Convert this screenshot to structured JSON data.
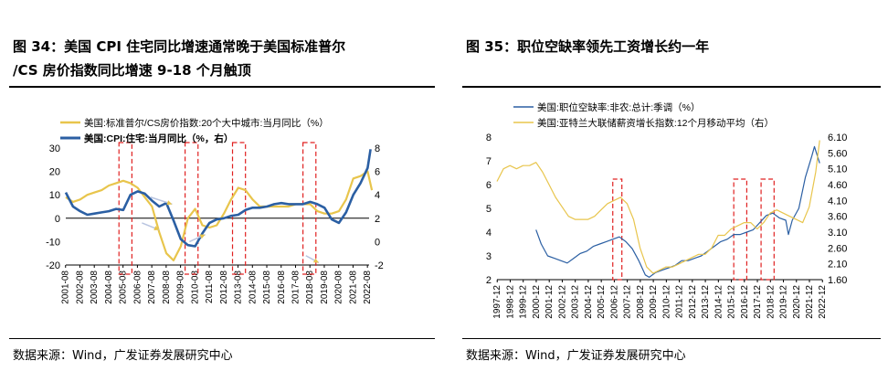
{
  "left": {
    "title_line1": "图 34：美国 CPI 住宅同比增速通常晚于美国标准普尔",
    "title_line2": "/CS 房价指数同比增速 9-18 个月触顶",
    "source": "数据来源：Wind，广发证券发展研究中心"
  },
  "right": {
    "title": "图 35：职位空缺率领先工资增长约一年",
    "source": "数据来源：Wind，广发证券发展研究中心"
  },
  "chart_data": [
    {
      "type": "line",
      "legend_placement": "top-left",
      "x_dates": [
        "2001-08",
        "2002-08",
        "2003-08",
        "2004-08",
        "2005-08",
        "2006-08",
        "2007-08",
        "2008-08",
        "2009-08",
        "2010-08",
        "2011-08",
        "2012-08",
        "2013-08",
        "2014-08",
        "2015-08",
        "2016-08",
        "2017-08",
        "2018-08",
        "2019-08",
        "2020-08",
        "2021-08",
        "2022-08"
      ],
      "y_left": {
        "ylim": [
          -20,
          30
        ],
        "ticks": [
          -20,
          -10,
          0,
          10,
          20,
          30
        ]
      },
      "y_right": {
        "ylim": [
          -2,
          8
        ],
        "ticks": [
          -2,
          0,
          2,
          4,
          6,
          8
        ]
      },
      "series": [
        {
          "name": "美国:标准普尔/CS房价指数:20个大中城市:当月同比（%）",
          "axis": "left",
          "color": "#e8c54c",
          "x": [
            2001.6,
            2002.1,
            2002.6,
            2003.1,
            2003.6,
            2004.1,
            2004.6,
            2005.1,
            2005.6,
            2006.1,
            2006.6,
            2007.1,
            2007.6,
            2008.1,
            2008.6,
            2009.1,
            2009.6,
            2010.1,
            2010.6,
            2011.1,
            2011.6,
            2012.1,
            2012.6,
            2013.1,
            2013.6,
            2014.1,
            2014.6,
            2015.1,
            2015.6,
            2016.1,
            2016.6,
            2017.1,
            2017.6,
            2018.1,
            2018.6,
            2019.1,
            2019.6,
            2020.1,
            2020.6,
            2021.1,
            2021.6,
            2022.1,
            2022.6,
            2022.9
          ],
          "y": [
            9,
            7,
            8,
            10,
            11,
            12,
            14,
            15,
            16,
            15,
            13,
            9,
            5,
            -6,
            -15,
            -18,
            -12,
            0,
            4,
            -3,
            -4,
            -3,
            2,
            8,
            13,
            12,
            8,
            5,
            5,
            5,
            5,
            5,
            6,
            6,
            6,
            3,
            2,
            2,
            3,
            8,
            17,
            18,
            20,
            12
          ]
        },
        {
          "name": "美国:CPI:住宅:当月同比（%，右）",
          "axis": "right",
          "color": "#2b5fa3",
          "x": [
            2001.6,
            2002.1,
            2002.6,
            2003.1,
            2003.6,
            2004.1,
            2004.6,
            2005.1,
            2005.6,
            2006.1,
            2006.6,
            2007.1,
            2007.6,
            2008.1,
            2008.6,
            2009.1,
            2009.6,
            2010.1,
            2010.6,
            2011.1,
            2011.6,
            2012.1,
            2012.6,
            2013.1,
            2013.6,
            2014.1,
            2014.6,
            2015.1,
            2015.6,
            2016.1,
            2016.6,
            2017.1,
            2017.6,
            2018.1,
            2018.6,
            2019.1,
            2019.6,
            2020.1,
            2020.6,
            2021.1,
            2021.6,
            2022.1,
            2022.6,
            2022.8
          ],
          "y": [
            4.2,
            3.0,
            2.6,
            2.3,
            2.4,
            2.5,
            2.6,
            2.8,
            2.7,
            4.0,
            4.3,
            4.1,
            3.5,
            3.0,
            3.3,
            1.8,
            0.2,
            -0.3,
            -0.4,
            0.7,
            1.6,
            1.9,
            2.0,
            2.2,
            2.3,
            2.7,
            2.9,
            2.9,
            3.0,
            3.2,
            3.3,
            3.2,
            3.2,
            3.2,
            3.4,
            3.2,
            2.9,
            1.9,
            1.6,
            2.5,
            4.0,
            5.0,
            6.3,
            7.9
          ]
        }
      ],
      "annotations": [
        {
          "type": "dashed-box",
          "x_range": [
            2005.3,
            2006.2
          ]
        },
        {
          "type": "dashed-box",
          "x_range": [
            2009.9,
            2010.8
          ]
        },
        {
          "type": "dashed-box",
          "x_range": [
            2013.2,
            2014.1
          ]
        },
        {
          "type": "dashed-box",
          "x_range": [
            2018.1,
            2019.0
          ]
        },
        {
          "type": "arrow",
          "from": [
            2006.9,
            -2
          ],
          "to": [
            2008.1,
            -5
          ]
        },
        {
          "type": "arrow",
          "from": [
            2010.2,
            -10
          ],
          "to": [
            2011.3,
            -7
          ]
        },
        {
          "type": "arrow",
          "from": [
            2018.3,
            -16
          ],
          "to": [
            2019.2,
            -19
          ]
        },
        {
          "type": "arrow",
          "from": [
            2007.5,
            9
          ],
          "to": [
            2009.0,
            6
          ]
        }
      ]
    },
    {
      "type": "line",
      "legend_placement": "top-left",
      "x_dates": [
        "1997-12",
        "1998-12",
        "1999-12",
        "2000-12",
        "2001-12",
        "2002-12",
        "2003-12",
        "2004-12",
        "2005-12",
        "2006-12",
        "2007-12",
        "2008-12",
        "2009-12",
        "2010-12",
        "2011-12",
        "2012-12",
        "2013-12",
        "2014-12",
        "2015-12",
        "2016-12",
        "2017-12",
        "2018-12",
        "2019-12",
        "2020-12",
        "2021-12",
        "2022-12"
      ],
      "y_left": {
        "ylim": [
          2,
          8
        ],
        "ticks": [
          2,
          3,
          4,
          5,
          6,
          7,
          8
        ]
      },
      "y_right": {
        "ylim": [
          1.6,
          6.1
        ],
        "ticks": [
          "1.60",
          "2.10",
          "2.60",
          "3.10",
          "3.60",
          "4.10",
          "4.60",
          "5.10",
          "5.60",
          "6.10"
        ]
      },
      "series": [
        {
          "name": "美国:职位空缺率:非农:总计:季调（%）",
          "axis": "left",
          "color": "#2b5fa3",
          "x": [
            2000.9,
            2001.3,
            2001.8,
            2002.3,
            2002.8,
            2003.3,
            2003.8,
            2004.3,
            2004.8,
            2005.3,
            2005.8,
            2006.3,
            2006.8,
            2007.3,
            2007.8,
            2008.3,
            2008.8,
            2009.3,
            2009.6,
            2010.1,
            2010.6,
            2011.1,
            2011.6,
            2012.1,
            2012.6,
            2013.1,
            2013.6,
            2014.1,
            2014.6,
            2015.1,
            2015.6,
            2016.1,
            2016.6,
            2017.1,
            2017.6,
            2018.1,
            2018.6,
            2019.1,
            2019.6,
            2020.1,
            2020.3,
            2020.6,
            2021.1,
            2021.6,
            2022.1,
            2022.3,
            2022.7
          ],
          "y": [
            4.1,
            3.5,
            3.0,
            2.9,
            2.8,
            2.7,
            2.9,
            3.1,
            3.2,
            3.4,
            3.5,
            3.6,
            3.7,
            3.8,
            3.6,
            3.3,
            2.8,
            2.2,
            2.1,
            2.3,
            2.4,
            2.5,
            2.6,
            2.8,
            2.8,
            2.9,
            3.0,
            3.2,
            3.4,
            3.6,
            3.7,
            3.9,
            3.9,
            4.0,
            4.1,
            4.4,
            4.7,
            4.8,
            4.6,
            4.5,
            3.9,
            4.5,
            5.0,
            6.3,
            7.2,
            7.6,
            6.9
          ]
        },
        {
          "name": "美国:亚特兰大联储薪资增长指数:12个月移动平均（右）",
          "axis": "right",
          "color": "#e8c54c",
          "x": [
            1997.9,
            1998.4,
            1998.9,
            1999.4,
            1999.9,
            2000.4,
            2000.9,
            2001.4,
            2001.9,
            2002.4,
            2002.9,
            2003.4,
            2003.9,
            2004.4,
            2004.9,
            2005.4,
            2005.9,
            2006.4,
            2006.9,
            2007.4,
            2007.9,
            2008.4,
            2008.9,
            2009.4,
            2009.9,
            2010.4,
            2010.9,
            2011.4,
            2011.9,
            2012.4,
            2012.9,
            2013.4,
            2013.9,
            2014.4,
            2014.9,
            2015.4,
            2015.9,
            2016.4,
            2016.9,
            2017.4,
            2017.9,
            2018.4,
            2018.9,
            2019.4,
            2019.9,
            2020.4,
            2020.9,
            2021.4,
            2021.9,
            2022.4,
            2022.7
          ],
          "y": [
            4.7,
            5.1,
            5.2,
            5.1,
            5.2,
            5.2,
            5.3,
            5.0,
            4.6,
            4.2,
            3.9,
            3.6,
            3.5,
            3.5,
            3.5,
            3.6,
            3.8,
            4.0,
            4.1,
            4.2,
            4.0,
            3.5,
            2.6,
            2.0,
            1.8,
            1.9,
            2.0,
            2.0,
            2.1,
            2.2,
            2.3,
            2.4,
            2.4,
            2.6,
            3.0,
            3.0,
            3.2,
            3.3,
            3.4,
            3.4,
            3.2,
            3.4,
            3.7,
            3.8,
            3.7,
            3.6,
            3.5,
            3.4,
            3.9,
            5.0,
            6.0
          ]
        }
      ],
      "annotations": [
        {
          "type": "dashed-box",
          "x_range": [
            2006.8,
            2007.5
          ]
        },
        {
          "type": "dashed-box",
          "x_range": [
            2016.1,
            2017.1
          ]
        },
        {
          "type": "dashed-box",
          "x_range": [
            2018.2,
            2019.2
          ]
        }
      ]
    }
  ]
}
